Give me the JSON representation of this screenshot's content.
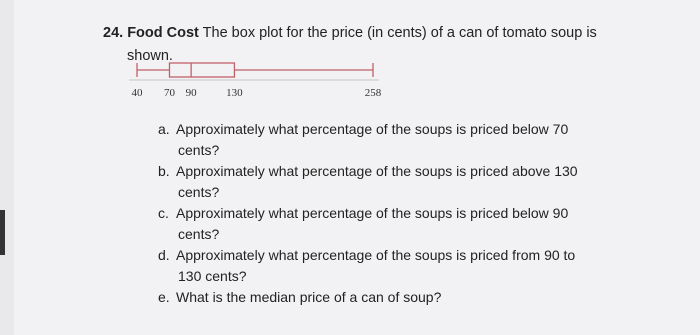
{
  "problem": {
    "number": "24.",
    "title": "Food Cost",
    "text": "The box plot for the price (in cents) of a can of tomato soup is",
    "text_cont": "shown."
  },
  "box_plot": {
    "min": 40,
    "q1": 70,
    "median": 90,
    "q3": 130,
    "max": 258
  },
  "questions": [
    {
      "label": "a.",
      "text": "Approximately what percentage of the soups is priced below 70",
      "cont": "cents?"
    },
    {
      "label": "b.",
      "text": "Approximately what percentage of the soups is priced above 130",
      "cont": "cents?"
    },
    {
      "label": "c.",
      "text": "Approximately what percentage of the soups is priced below 90",
      "cont": "cents?"
    },
    {
      "label": "d.",
      "text": "Approximately what percentage of the soups is priced from 90 to",
      "cont": "130 cents?"
    },
    {
      "label": "e.",
      "text": "What is the median price of a can of soup?"
    }
  ]
}
